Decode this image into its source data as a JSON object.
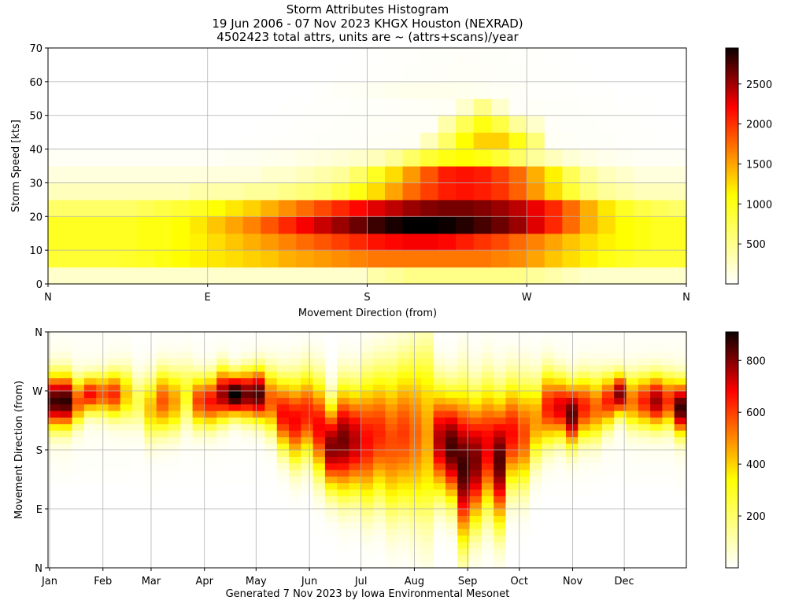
{
  "header": {
    "title": "Storm Attributes Histogram",
    "subtitle": "19 Jun 2006 - 07 Nov 2023 KHGX Houston (NEXRAD)",
    "note": "4502423 total attrs, units are ~ (attrs+scans)/year"
  },
  "footer": "Generated 7 Nov 2023 by Iowa Environmental Mesonet",
  "colormap": "hot_r",
  "chart_data": [
    {
      "type": "heatmap",
      "xlabel": "Movement Direction (from)",
      "ylabel": "Storm Speed [kts]",
      "x_tick_labels": [
        "N",
        "E",
        "S",
        "W",
        "N"
      ],
      "y_tick_labels": [
        "0",
        "10",
        "20",
        "30",
        "40",
        "50",
        "60",
        "70"
      ],
      "ylim": [
        0,
        70
      ],
      "colorbar_ticks": [
        500,
        1000,
        1500,
        2000,
        2500
      ],
      "vmax": 2950,
      "grid": true,
      "direction_bins": 36,
      "speed_bin_kts": 5,
      "speed_bins": 14,
      "sparse_cells": [
        {
          "dir": 23,
          "speed": 50,
          "value": 150
        },
        {
          "dir": 24,
          "speed": 50,
          "value": 350
        },
        {
          "dir": 25,
          "speed": 50,
          "value": 150
        },
        {
          "dir": 22,
          "speed": 45,
          "value": 250
        },
        {
          "dir": 23,
          "speed": 45,
          "value": 500
        },
        {
          "dir": 24,
          "speed": 45,
          "value": 700
        },
        {
          "dir": 25,
          "speed": 45,
          "value": 550
        },
        {
          "dir": 26,
          "speed": 45,
          "value": 300
        },
        {
          "dir": 27,
          "speed": 45,
          "value": 150
        },
        {
          "dir": 21,
          "speed": 40,
          "value": 200
        },
        {
          "dir": 22,
          "speed": 40,
          "value": 450
        },
        {
          "dir": 23,
          "speed": 40,
          "value": 750
        },
        {
          "dir": 24,
          "speed": 40,
          "value": 950
        },
        {
          "dir": 25,
          "speed": 40,
          "value": 950
        },
        {
          "dir": 26,
          "speed": 40,
          "value": 700
        },
        {
          "dir": 27,
          "speed": 40,
          "value": 400
        }
      ],
      "bands": [
        {
          "speed": 0,
          "values": [
            150,
            150,
            150,
            150,
            150,
            150,
            150,
            150,
            150,
            150,
            150,
            150,
            150,
            150,
            150,
            150,
            150,
            150,
            250,
            300,
            350,
            350,
            350,
            350,
            350,
            350,
            350,
            300,
            250,
            200,
            150,
            150,
            150,
            150,
            150,
            150
          ]
        },
        {
          "speed": 5,
          "values": [
            600,
            600,
            600,
            600,
            620,
            650,
            700,
            750,
            800,
            850,
            900,
            950,
            1000,
            1100,
            1150,
            1200,
            1250,
            1300,
            1350,
            1350,
            1350,
            1350,
            1350,
            1350,
            1350,
            1300,
            1250,
            1150,
            1000,
            900,
            800,
            700,
            650,
            600,
            600,
            600
          ]
        },
        {
          "speed": 10,
          "values": [
            650,
            650,
            650,
            650,
            650,
            700,
            700,
            750,
            800,
            900,
            1000,
            1100,
            1200,
            1300,
            1400,
            1500,
            1600,
            1700,
            1800,
            1850,
            1900,
            1900,
            1850,
            1750,
            1650,
            1550,
            1400,
            1300,
            1150,
            1000,
            900,
            800,
            750,
            700,
            650,
            650
          ]
        },
        {
          "speed": 15,
          "values": [
            650,
            650,
            650,
            650,
            650,
            700,
            700,
            750,
            850,
            1000,
            1150,
            1300,
            1500,
            1700,
            1900,
            2100,
            2300,
            2500,
            2700,
            2850,
            2950,
            2950,
            2900,
            2800,
            2650,
            2500,
            2300,
            2000,
            1700,
            1400,
            1100,
            900,
            750,
            700,
            650,
            650
          ]
        },
        {
          "speed": 20,
          "values": [
            450,
            450,
            450,
            450,
            450,
            500,
            550,
            600,
            650,
            750,
            850,
            950,
            1100,
            1250,
            1400,
            1550,
            1700,
            1850,
            2000,
            2150,
            2300,
            2400,
            2450,
            2450,
            2400,
            2300,
            2150,
            1950,
            1700,
            1400,
            1100,
            850,
            650,
            550,
            500,
            450
          ]
        },
        {
          "speed": 25,
          "values": [
            200,
            200,
            200,
            200,
            200,
            200,
            200,
            200,
            250,
            250,
            250,
            300,
            300,
            350,
            400,
            450,
            550,
            700,
            900,
            1150,
            1400,
            1600,
            1750,
            1800,
            1750,
            1650,
            1450,
            1200,
            900,
            600,
            400,
            300,
            250,
            200,
            200,
            200
          ]
        },
        {
          "speed": 30,
          "values": [
            100,
            100,
            100,
            100,
            100,
            100,
            100,
            100,
            100,
            100,
            100,
            100,
            150,
            150,
            200,
            250,
            300,
            450,
            650,
            900,
            1200,
            1500,
            1750,
            1800,
            1750,
            1600,
            1400,
            1100,
            800,
            500,
            300,
            200,
            150,
            100,
            100,
            100
          ]
        },
        {
          "speed": 35,
          "values": [
            30,
            30,
            30,
            30,
            30,
            30,
            30,
            30,
            30,
            30,
            40,
            40,
            50,
            60,
            80,
            100,
            120,
            150,
            200,
            300,
            450,
            600,
            700,
            750,
            700,
            600,
            450,
            300,
            200,
            120,
            80,
            60,
            40,
            30,
            30,
            30
          ]
        },
        {
          "speed": 55,
          "values": [
            0,
            0,
            0,
            0,
            0,
            0,
            0,
            0,
            0,
            0,
            0,
            0,
            0,
            0,
            0,
            10,
            20,
            30,
            40,
            50,
            60,
            60,
            60,
            50,
            40,
            30,
            20,
            10,
            0,
            0,
            0,
            0,
            0,
            0,
            0,
            0
          ]
        }
      ]
    },
    {
      "type": "heatmap",
      "ylabel": "Movement Direction (from)",
      "x_tick_labels": [
        "Jan",
        "Feb",
        "Mar",
        "Apr",
        "May",
        "Jun",
        "Jul",
        "Aug",
        "Sep",
        "Oct",
        "Nov",
        "Dec"
      ],
      "y_tick_labels": [
        "N",
        "E",
        "S",
        "W",
        "N"
      ],
      "colorbar_ticks": [
        200,
        400,
        600,
        800
      ],
      "vmax": 910,
      "grid": true,
      "week_bins": 53,
      "direction_bins": 36,
      "columns": [
        {
          "w": 0,
          "center": 25,
          "peak": 800,
          "width": 2.5,
          "bg": 30
        },
        {
          "w": 1,
          "center": 25,
          "peak": 820,
          "width": 2.5,
          "bg": 30
        },
        {
          "w": 2,
          "center": 25,
          "peak": 450,
          "width": 2.2,
          "bg": 20
        },
        {
          "w": 3,
          "center": 26,
          "peak": 550,
          "width": 1.8,
          "bg": 20
        },
        {
          "w": 4,
          "center": 26,
          "peak": 450,
          "width": 2.0,
          "bg": 20
        },
        {
          "w": 5,
          "center": 26,
          "peak": 500,
          "width": 2.2,
          "bg": 20
        },
        {
          "w": 6,
          "center": 26,
          "peak": 280,
          "width": 2.5,
          "bg": 20
        },
        {
          "w": 7,
          "center": 25,
          "peak": 150,
          "width": 2.5,
          "bg": 10
        },
        {
          "w": 8,
          "center": 24,
          "peak": 300,
          "width": 3.0,
          "bg": 10
        },
        {
          "w": 9,
          "center": 25,
          "peak": 450,
          "width": 3.0,
          "bg": 10
        },
        {
          "w": 10,
          "center": 25,
          "peak": 350,
          "width": 3.0,
          "bg": 10
        },
        {
          "w": 11,
          "center": 26,
          "peak": 200,
          "width": 3.0,
          "bg": 10
        },
        {
          "w": 12,
          "center": 25,
          "peak": 480,
          "width": 2.5,
          "bg": 10
        },
        {
          "w": 13,
          "center": 25,
          "peak": 550,
          "width": 2.5,
          "bg": 10
        },
        {
          "w": 14,
          "center": 26,
          "peak": 700,
          "width": 2.5,
          "bg": 10
        },
        {
          "w": 15,
          "center": 26,
          "peak": 910,
          "width": 2.0,
          "bg": 10
        },
        {
          "w": 16,
          "center": 26,
          "peak": 760,
          "width": 2.3,
          "bg": 10
        },
        {
          "w": 17,
          "center": 26,
          "peak": 800,
          "width": 2.5,
          "bg": 10
        },
        {
          "w": 18,
          "center": 25,
          "peak": 450,
          "width": 3.0,
          "bg": 10
        },
        {
          "w": 19,
          "center": 23,
          "peak": 560,
          "width": 3.5,
          "bg": 10
        },
        {
          "w": 20,
          "center": 22,
          "peak": 560,
          "width": 4.0,
          "bg": 20
        },
        {
          "w": 21,
          "center": 23,
          "peak": 520,
          "width": 4.0,
          "bg": 20
        },
        {
          "w": 22,
          "center": 21,
          "peak": 560,
          "width": 4.5,
          "bg": 20
        },
        {
          "w": 23,
          "center": 18,
          "peak": 720,
          "width": 4.0,
          "bg": 20
        },
        {
          "w": 24,
          "center": 19,
          "peak": 740,
          "width": 5.0,
          "bg": 20
        },
        {
          "w": 25,
          "center": 19,
          "peak": 640,
          "width": 5.0,
          "bg": 30
        },
        {
          "w": 26,
          "center": 19,
          "peak": 520,
          "width": 6.0,
          "bg": 50
        },
        {
          "w": 27,
          "center": 20,
          "peak": 480,
          "width": 6.0,
          "bg": 50
        },
        {
          "w": 28,
          "center": 19,
          "peak": 420,
          "width": 7.0,
          "bg": 60
        },
        {
          "w": 29,
          "center": 20,
          "peak": 440,
          "width": 7.0,
          "bg": 60
        },
        {
          "w": 30,
          "center": 20,
          "peak": 380,
          "width": 8.0,
          "bg": 60
        },
        {
          "w": 31,
          "center": 20,
          "peak": 300,
          "width": 9.0,
          "bg": 60
        },
        {
          "w": 32,
          "center": 19,
          "peak": 620,
          "width": 5.0,
          "bg": 60
        },
        {
          "w": 33,
          "center": 18,
          "peak": 760,
          "width": 5.0,
          "bg": 60
        },
        {
          "w": 34,
          "center": 15,
          "peak": 780,
          "width": 7.0,
          "bg": 50
        },
        {
          "w": 35,
          "center": 16,
          "peak": 700,
          "width": 6.0,
          "bg": 50
        },
        {
          "w": 36,
          "center": 18,
          "peak": 560,
          "width": 6.0,
          "bg": 40
        },
        {
          "w": 37,
          "center": 16,
          "peak": 760,
          "width": 6.0,
          "bg": 40
        },
        {
          "w": 38,
          "center": 20,
          "peak": 540,
          "width": 5.0,
          "bg": 30
        },
        {
          "w": 39,
          "center": 20,
          "peak": 450,
          "width": 5.0,
          "bg": 30
        },
        {
          "w": 40,
          "center": 22,
          "peak": 350,
          "width": 4.0,
          "bg": 20
        },
        {
          "w": 41,
          "center": 24,
          "peak": 520,
          "width": 3.5,
          "bg": 20
        },
        {
          "w": 42,
          "center": 24,
          "peak": 600,
          "width": 3.0,
          "bg": 20
        },
        {
          "w": 43,
          "center": 23,
          "peak": 760,
          "width": 3.0,
          "bg": 20
        },
        {
          "w": 44,
          "center": 24,
          "peak": 520,
          "width": 3.0,
          "bg": 20
        },
        {
          "w": 45,
          "center": 24,
          "peak": 420,
          "width": 3.0,
          "bg": 20
        },
        {
          "w": 46,
          "center": 25,
          "peak": 520,
          "width": 2.5,
          "bg": 20
        },
        {
          "w": 47,
          "center": 26,
          "peak": 720,
          "width": 2.0,
          "bg": 20
        },
        {
          "w": 48,
          "center": 25,
          "peak": 400,
          "width": 2.5,
          "bg": 20
        },
        {
          "w": 49,
          "center": 25,
          "peak": 520,
          "width": 2.5,
          "bg": 20
        },
        {
          "w": 50,
          "center": 25,
          "peak": 680,
          "width": 2.5,
          "bg": 20
        },
        {
          "w": 51,
          "center": 25,
          "peak": 500,
          "width": 2.5,
          "bg": 20
        },
        {
          "w": 52,
          "center": 24,
          "peak": 800,
          "width": 2.5,
          "bg": 30
        }
      ]
    }
  ]
}
